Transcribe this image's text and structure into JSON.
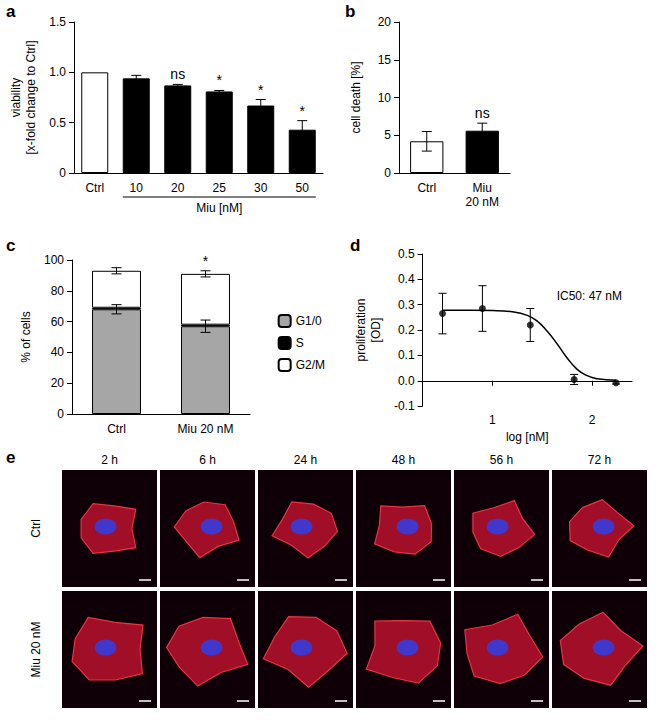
{
  "chart_data": [
    {
      "panel": "a",
      "type": "bar",
      "categories": [
        "Ctrl",
        "10",
        "20",
        "25",
        "30",
        "50"
      ],
      "values": [
        1,
        0.94,
        0.87,
        0.81,
        0.67,
        0.43
      ],
      "errors": [
        0,
        0.03,
        0.01,
        0.01,
        0.06,
        0.09
      ],
      "colors": [
        "#ffffff",
        "#000000",
        "#000000",
        "#000000",
        "#000000",
        "#000000"
      ],
      "y_label": "viability\n[x-fold change to Ctrl]",
      "ylim": [
        0,
        1.5
      ],
      "yticks": [
        0,
        0.5,
        {
          "value": 1,
          "label": "1.0"
        },
        1.5
      ],
      "grid": false,
      "annotations": [
        {
          "category": "20",
          "text": "ns"
        },
        {
          "category": "25",
          "text": "*"
        },
        {
          "category": "30",
          "text": "*"
        },
        {
          "category": "50",
          "text": "*"
        }
      ],
      "group_label": {
        "text": "Miu [nM]",
        "from": "10",
        "to": "50"
      }
    },
    {
      "panel": "b",
      "type": "bar",
      "categories": [
        "Ctrl",
        "Miu\n20 nM"
      ],
      "values": [
        4.2,
        5.6
      ],
      "errors": [
        1.3,
        1.0
      ],
      "colors": [
        "#ffffff",
        "#000000"
      ],
      "y_label": "cell death [%]",
      "ylim": [
        0,
        20
      ],
      "yticks": [
        0,
        5,
        10,
        15,
        20
      ],
      "grid": false,
      "annotations": [
        {
          "category": "Miu\n20 nM",
          "text": "ns"
        }
      ]
    },
    {
      "panel": "c",
      "type": "bar",
      "stacked": true,
      "categories": [
        "Ctrl",
        "Miu 20 nM"
      ],
      "series": [
        {
          "name": "G1/0",
          "color": "#a6a6a6",
          "values": [
            68,
            57
          ],
          "errors": [
            3,
            4
          ]
        },
        {
          "name": "S",
          "color": "#000000",
          "values": [
            1,
            1
          ]
        },
        {
          "name": "G2/M",
          "color": "#ffffff",
          "values": [
            24,
            33
          ],
          "errors": [
            2,
            2
          ]
        }
      ],
      "y_label": "% of cells",
      "ylim": [
        0,
        100
      ],
      "yticks": [
        0,
        20,
        40,
        60,
        80,
        100
      ],
      "grid": false,
      "legend": "right",
      "annotations": [
        {
          "category": "Miu 20 nM",
          "text": "*"
        }
      ]
    },
    {
      "panel": "d",
      "type": "scatter",
      "color": "#000000",
      "x": [
        0.5,
        0.9,
        1.38,
        1.82,
        2.24
      ],
      "values": [
        0.265,
        0.285,
        0.22,
        0.005,
        -0.008
      ],
      "errors": [
        0.08,
        0.09,
        0.065,
        0.02,
        0.005
      ],
      "curve": {
        "x": [
          0.5,
          0.8,
          1.0,
          1.2,
          1.35,
          1.45,
          1.55,
          1.65,
          1.75,
          1.85,
          1.95,
          2.05,
          2.24
        ],
        "values": [
          0.278,
          0.278,
          0.277,
          0.272,
          0.258,
          0.235,
          0.195,
          0.145,
          0.09,
          0.045,
          0.02,
          0.008,
          0.002
        ]
      },
      "x_label": "log [nM]",
      "y_label": "proliferation\n[OD]",
      "xlim": [
        0.3,
        2.4
      ],
      "xticks": [
        1,
        2
      ],
      "ylim": [
        -0.1,
        0.5
      ],
      "yticks": [
        -0.1,
        {
          "value": 0,
          "label": "0.0"
        },
        0.1,
        0.2,
        0.3,
        0.4,
        0.5
      ],
      "grid": false,
      "annotation": "IC50: 47 nM"
    }
  ],
  "images": {
    "panel": "e",
    "columns": [
      "2 h",
      "6 h",
      "24 h",
      "48 h",
      "56 h",
      "72 h"
    ],
    "rows": [
      "Ctrl",
      "Miu 20 nM"
    ]
  }
}
